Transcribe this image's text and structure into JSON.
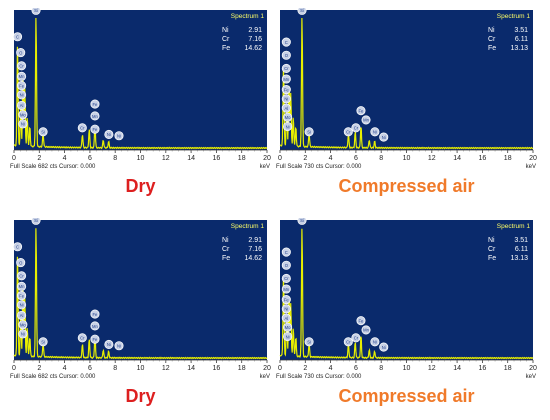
{
  "chart_data": [
    {
      "type": "line",
      "spectrum_label": "Spectrum 1",
      "caption": "Dry",
      "x_ticks": [
        0,
        2,
        4,
        6,
        8,
        10,
        12,
        14,
        16,
        18,
        20
      ],
      "xlim": [
        0,
        20
      ],
      "xunit": "keV",
      "footer": "Full Scale 682 cts Cursor: 0.000",
      "composition": [
        {
          "element": "Ni",
          "value": "2.91"
        },
        {
          "element": "Cr",
          "value": "7.16"
        },
        {
          "element": "Fe",
          "value": "14.62"
        }
      ],
      "peaks": [
        {
          "x": 0.28,
          "y": 0.78
        },
        {
          "x": 0.53,
          "y": 0.3
        },
        {
          "x": 0.71,
          "y": 0.55
        },
        {
          "x": 0.85,
          "y": 0.45
        },
        {
          "x": 1.05,
          "y": 0.22
        },
        {
          "x": 1.25,
          "y": 0.15
        },
        {
          "x": 1.74,
          "y": 1.0
        },
        {
          "x": 2.3,
          "y": 0.1
        },
        {
          "x": 5.41,
          "y": 0.1
        },
        {
          "x": 5.95,
          "y": 0.14
        },
        {
          "x": 6.4,
          "y": 0.18
        },
        {
          "x": 7.06,
          "y": 0.06
        },
        {
          "x": 7.48,
          "y": 0.05
        }
      ],
      "markers": [
        {
          "x": 1.74,
          "y": 1.02,
          "label": "Si"
        },
        {
          "x": 0.28,
          "y": 0.82,
          "label": "C"
        },
        {
          "x": 0.53,
          "y": 0.7,
          "label": "O"
        },
        {
          "x": 0.6,
          "y": 0.6,
          "label": "Cr"
        },
        {
          "x": 0.6,
          "y": 0.52,
          "label": "Mn"
        },
        {
          "x": 0.6,
          "y": 0.45,
          "label": "Fe"
        },
        {
          "x": 0.6,
          "y": 0.38,
          "label": "Ni"
        },
        {
          "x": 0.6,
          "y": 0.3,
          "label": "Al"
        },
        {
          "x": 0.7,
          "y": 0.23,
          "label": "Mo"
        },
        {
          "x": 0.7,
          "y": 0.16,
          "label": "Ni"
        },
        {
          "x": 2.3,
          "y": 0.1,
          "label": "Si"
        },
        {
          "x": 5.4,
          "y": 0.13,
          "label": "Cr"
        },
        {
          "x": 6.4,
          "y": 0.31,
          "label": "Fe"
        },
        {
          "x": 6.4,
          "y": 0.22,
          "label": "Mn"
        },
        {
          "x": 6.4,
          "y": 0.12,
          "label": "Fe"
        },
        {
          "x": 7.5,
          "y": 0.08,
          "label": "Ni"
        },
        {
          "x": 8.3,
          "y": 0.07,
          "label": "Ni"
        }
      ]
    },
    {
      "type": "line",
      "spectrum_label": "Spectrum 1",
      "caption": "Compressed air",
      "x_ticks": [
        0,
        2,
        4,
        6,
        8,
        10,
        12,
        14,
        16,
        18,
        20
      ],
      "xlim": [
        0,
        20
      ],
      "xunit": "keV",
      "footer": "Full Scale 730 cts Cursor: 0.000",
      "composition": [
        {
          "element": "Ni",
          "value": "3.51"
        },
        {
          "element": "Cr",
          "value": "6.11"
        },
        {
          "element": "Fe",
          "value": "13.13"
        }
      ],
      "peaks": [
        {
          "x": 0.28,
          "y": 0.62
        },
        {
          "x": 0.53,
          "y": 0.3
        },
        {
          "x": 0.71,
          "y": 0.5
        },
        {
          "x": 0.85,
          "y": 0.4
        },
        {
          "x": 1.05,
          "y": 0.22
        },
        {
          "x": 1.25,
          "y": 0.15
        },
        {
          "x": 1.74,
          "y": 1.0
        },
        {
          "x": 2.3,
          "y": 0.1
        },
        {
          "x": 5.41,
          "y": 0.1
        },
        {
          "x": 5.95,
          "y": 0.12
        },
        {
          "x": 6.4,
          "y": 0.17
        },
        {
          "x": 7.06,
          "y": 0.06
        },
        {
          "x": 7.48,
          "y": 0.05
        }
      ],
      "markers": [
        {
          "x": 1.74,
          "y": 1.02,
          "label": "Si"
        },
        {
          "x": 0.5,
          "y": 0.78,
          "label": "C"
        },
        {
          "x": 0.5,
          "y": 0.68,
          "label": "O"
        },
        {
          "x": 0.5,
          "y": 0.58,
          "label": "Cr"
        },
        {
          "x": 0.5,
          "y": 0.5,
          "label": "Mn"
        },
        {
          "x": 0.5,
          "y": 0.42,
          "label": "Fe"
        },
        {
          "x": 0.5,
          "y": 0.35,
          "label": "Ni"
        },
        {
          "x": 0.5,
          "y": 0.28,
          "label": "Al"
        },
        {
          "x": 0.6,
          "y": 0.21,
          "label": "Mo"
        },
        {
          "x": 0.6,
          "y": 0.14,
          "label": "Ni"
        },
        {
          "x": 2.3,
          "y": 0.1,
          "label": "Si"
        },
        {
          "x": 5.4,
          "y": 0.1,
          "label": "Cr"
        },
        {
          "x": 6.0,
          "y": 0.13,
          "label": "Cr"
        },
        {
          "x": 6.4,
          "y": 0.26,
          "label": "Fe"
        },
        {
          "x": 6.8,
          "y": 0.19,
          "label": "Mn"
        },
        {
          "x": 7.5,
          "y": 0.1,
          "label": "Ni"
        },
        {
          "x": 8.2,
          "y": 0.06,
          "label": "Ni"
        }
      ]
    },
    {
      "type": "line",
      "spectrum_label": "Spectrum 1",
      "caption": "Dry",
      "x_ticks": [
        0,
        2,
        4,
        6,
        8,
        10,
        12,
        14,
        16,
        18,
        20
      ],
      "xlim": [
        0,
        20
      ],
      "xunit": "keV",
      "footer": "Full Scale 682 cts Cursor: 0.000",
      "composition": [
        {
          "element": "Ni",
          "value": "2.91"
        },
        {
          "element": "Cr",
          "value": "7.16"
        },
        {
          "element": "Fe",
          "value": "14.62"
        }
      ],
      "peaks": [
        {
          "x": 0.28,
          "y": 0.78
        },
        {
          "x": 0.53,
          "y": 0.3
        },
        {
          "x": 0.71,
          "y": 0.55
        },
        {
          "x": 0.85,
          "y": 0.45
        },
        {
          "x": 1.05,
          "y": 0.22
        },
        {
          "x": 1.25,
          "y": 0.15
        },
        {
          "x": 1.74,
          "y": 1.0
        },
        {
          "x": 2.3,
          "y": 0.1
        },
        {
          "x": 5.41,
          "y": 0.1
        },
        {
          "x": 5.95,
          "y": 0.14
        },
        {
          "x": 6.4,
          "y": 0.18
        },
        {
          "x": 7.06,
          "y": 0.06
        },
        {
          "x": 7.48,
          "y": 0.05
        }
      ],
      "markers": [
        {
          "x": 1.74,
          "y": 1.02,
          "label": "Si"
        },
        {
          "x": 0.28,
          "y": 0.82,
          "label": "C"
        },
        {
          "x": 0.53,
          "y": 0.7,
          "label": "O"
        },
        {
          "x": 0.6,
          "y": 0.6,
          "label": "Cr"
        },
        {
          "x": 0.6,
          "y": 0.52,
          "label": "Mn"
        },
        {
          "x": 0.6,
          "y": 0.45,
          "label": "Fe"
        },
        {
          "x": 0.6,
          "y": 0.38,
          "label": "Ni"
        },
        {
          "x": 0.6,
          "y": 0.3,
          "label": "Al"
        },
        {
          "x": 0.7,
          "y": 0.23,
          "label": "Mo"
        },
        {
          "x": 0.7,
          "y": 0.16,
          "label": "Ni"
        },
        {
          "x": 2.3,
          "y": 0.1,
          "label": "Si"
        },
        {
          "x": 5.4,
          "y": 0.13,
          "label": "Cr"
        },
        {
          "x": 6.4,
          "y": 0.31,
          "label": "Fe"
        },
        {
          "x": 6.4,
          "y": 0.22,
          "label": "Mn"
        },
        {
          "x": 6.4,
          "y": 0.12,
          "label": "Fe"
        },
        {
          "x": 7.5,
          "y": 0.08,
          "label": "Ni"
        },
        {
          "x": 8.3,
          "y": 0.07,
          "label": "Ni"
        }
      ]
    },
    {
      "type": "line",
      "spectrum_label": "Spectrum 1",
      "caption": "Compressed air",
      "x_ticks": [
        0,
        2,
        4,
        6,
        8,
        10,
        12,
        14,
        16,
        18,
        20
      ],
      "xlim": [
        0,
        20
      ],
      "xunit": "keV",
      "footer": "Full Scale 730 cts Cursor: 0.000",
      "composition": [
        {
          "element": "Ni",
          "value": "3.51"
        },
        {
          "element": "Cr",
          "value": "6.11"
        },
        {
          "element": "Fe",
          "value": "13.13"
        }
      ],
      "peaks": [
        {
          "x": 0.28,
          "y": 0.62
        },
        {
          "x": 0.53,
          "y": 0.3
        },
        {
          "x": 0.71,
          "y": 0.5
        },
        {
          "x": 0.85,
          "y": 0.4
        },
        {
          "x": 1.05,
          "y": 0.22
        },
        {
          "x": 1.25,
          "y": 0.15
        },
        {
          "x": 1.74,
          "y": 1.0
        },
        {
          "x": 2.3,
          "y": 0.1
        },
        {
          "x": 5.41,
          "y": 0.1
        },
        {
          "x": 5.95,
          "y": 0.12
        },
        {
          "x": 6.4,
          "y": 0.17
        },
        {
          "x": 7.06,
          "y": 0.06
        },
        {
          "x": 7.48,
          "y": 0.05
        }
      ],
      "markers": [
        {
          "x": 1.74,
          "y": 1.02,
          "label": "Si"
        },
        {
          "x": 0.5,
          "y": 0.78,
          "label": "C"
        },
        {
          "x": 0.5,
          "y": 0.68,
          "label": "O"
        },
        {
          "x": 0.5,
          "y": 0.58,
          "label": "Cr"
        },
        {
          "x": 0.5,
          "y": 0.5,
          "label": "Mn"
        },
        {
          "x": 0.5,
          "y": 0.42,
          "label": "Fe"
        },
        {
          "x": 0.5,
          "y": 0.35,
          "label": "Ni"
        },
        {
          "x": 0.5,
          "y": 0.28,
          "label": "Al"
        },
        {
          "x": 0.6,
          "y": 0.21,
          "label": "Mo"
        },
        {
          "x": 0.6,
          "y": 0.14,
          "label": "Ni"
        },
        {
          "x": 2.3,
          "y": 0.1,
          "label": "Si"
        },
        {
          "x": 5.4,
          "y": 0.1,
          "label": "Cr"
        },
        {
          "x": 6.0,
          "y": 0.13,
          "label": "Cr"
        },
        {
          "x": 6.4,
          "y": 0.26,
          "label": "Fe"
        },
        {
          "x": 6.8,
          "y": 0.19,
          "label": "Mn"
        },
        {
          "x": 7.5,
          "y": 0.1,
          "label": "Ni"
        },
        {
          "x": 8.2,
          "y": 0.06,
          "label": "Ni"
        }
      ]
    }
  ],
  "colors": {
    "plot_bg": "#0a2a6c",
    "spectrum": "#e8ef00",
    "dry_caption": "#dd1f1f",
    "compressed_caption": "#f07a2a",
    "marker_fill": "#c9d2e6",
    "label_text": "#ffff66"
  }
}
